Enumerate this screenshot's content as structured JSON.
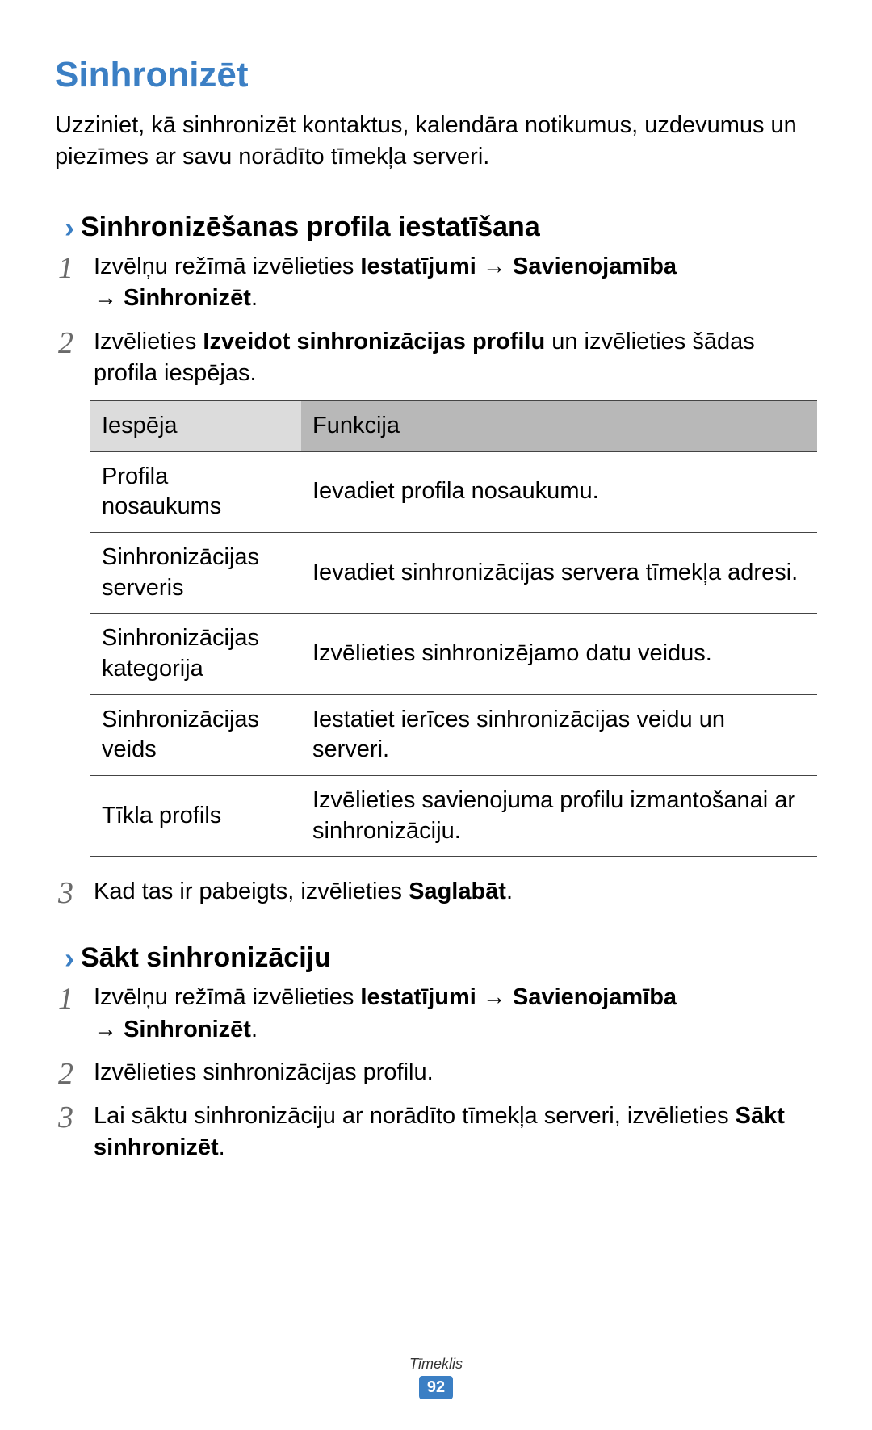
{
  "title": "Sinhronizēt",
  "intro": "Uzziniet, kā sinhronizēt kontaktus, kalendāra notikumus, uzdevumus un piezīmes ar savu norādīto tīmekļa serveri.",
  "section1": {
    "heading": "Sinhronizēšanas profila iestatīšana",
    "step1": {
      "pre": "Izvēlņu režīmā izvēlieties ",
      "b1": "Iestatījumi",
      "arrow": " → ",
      "b2": "Savienojamība",
      "b3": "Sinhronizēt",
      "dot": "."
    },
    "step2": {
      "pre": "Izvēlieties ",
      "b1": "Izveidot sinhronizācijas profilu",
      "post": " un izvēlieties šādas profila iespējas."
    },
    "table": {
      "col1": "Iespēja",
      "col2": "Funkcija",
      "rows": [
        {
          "opt": "Profila nosaukums",
          "fn": "Ievadiet profila nosaukumu."
        },
        {
          "opt": "Sinhronizācijas serveris",
          "fn": "Ievadiet sinhronizācijas servera tīmekļa adresi."
        },
        {
          "opt": "Sinhronizācijas kategorija",
          "fn": "Izvēlieties sinhronizējamo datu veidus."
        },
        {
          "opt": "Sinhronizācijas veids",
          "fn": "Iestatiet ierīces sinhronizācijas veidu un serveri."
        },
        {
          "opt": "Tīkla profils",
          "fn": "Izvēlieties savienojuma profilu izmantošanai ar sinhronizāciju."
        }
      ]
    },
    "step3": {
      "pre": "Kad tas ir pabeigts, izvēlieties ",
      "b1": "Saglabāt",
      "dot": "."
    }
  },
  "section2": {
    "heading": "Sākt sinhronizāciju",
    "step1": {
      "pre": "Izvēlņu režīmā izvēlieties ",
      "b1": "Iestatījumi",
      "arrow": " → ",
      "b2": "Savienojamība",
      "b3": "Sinhronizēt",
      "dot": "."
    },
    "step2": {
      "text": "Izvēlieties sinhronizācijas profilu."
    },
    "step3": {
      "pre": "Lai sāktu sinhronizāciju ar norādīto tīmekļa serveri, izvēlieties ",
      "b1": "Sākt sinhronizēt",
      "dot": "."
    }
  },
  "footer": {
    "label": "Tīmeklis",
    "page": "92"
  },
  "style": {
    "accent": "#3b7fc4",
    "text": "#000000",
    "step_num_color": "#6a6a6a",
    "th_bg_left": "#dcdcdc",
    "th_bg_right": "#b8b8b8",
    "border": "#444444",
    "page_bg": "#ffffff",
    "title_fontsize": 44,
    "subhead_fontsize": 34,
    "body_fontsize": 29,
    "stepnum_fontsize": 38,
    "footer_label_fontsize": 18,
    "page_num_fontsize": 20
  }
}
